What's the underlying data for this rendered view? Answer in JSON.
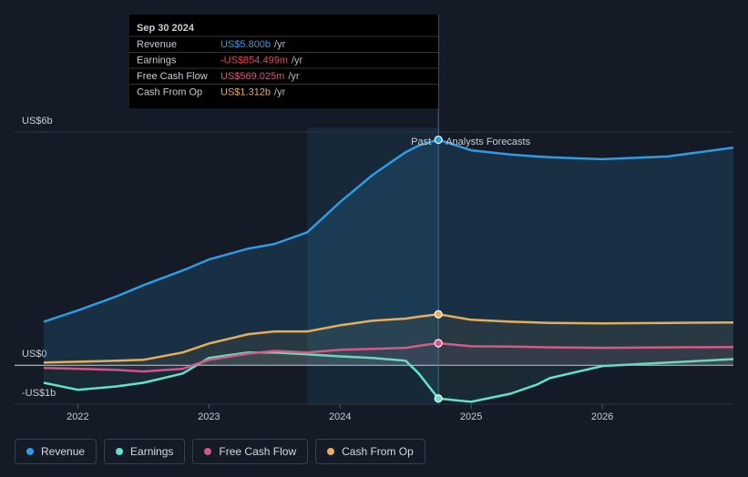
{
  "chart_data": {
    "type": "line",
    "x": [
      2021.74,
      2022,
      2022.3,
      2022.5,
      2022.8,
      2023,
      2023.3,
      2023.5,
      2023.75,
      2024,
      2024.25,
      2024.5,
      2024.6,
      2024.75,
      2025,
      2025.3,
      2025.5,
      2025.6,
      2026,
      2026.5,
      2027
    ],
    "series": [
      {
        "name": "Revenue",
        "color": "#2f9be3",
        "values": [
          1.12,
          1.41,
          1.78,
          2.06,
          2.44,
          2.72,
          3.0,
          3.12,
          3.42,
          4.2,
          4.9,
          5.48,
          5.65,
          5.8,
          5.53,
          5.42,
          5.37,
          5.35,
          5.3,
          5.37,
          5.6
        ]
      },
      {
        "name": "Earnings",
        "color": "#5fe3c9",
        "values": [
          -0.45,
          -0.63,
          -0.54,
          -0.45,
          -0.21,
          0.19,
          0.33,
          0.33,
          0.28,
          0.23,
          0.19,
          0.12,
          -0.21,
          -0.854,
          -0.94,
          -0.73,
          -0.5,
          -0.33,
          -0.02,
          0.07,
          0.16
        ]
      },
      {
        "name": "Free Cash Flow",
        "color": "#d0568a",
        "values": [
          -0.07,
          -0.09,
          -0.12,
          -0.16,
          -0.09,
          0.14,
          0.3,
          0.37,
          0.33,
          0.4,
          0.42,
          0.45,
          0.5,
          0.569,
          0.49,
          0.48,
          0.47,
          0.46,
          0.45,
          0.46,
          0.47
        ]
      },
      {
        "name": "Cash From Op",
        "color": "#e6ae5c",
        "values": [
          0.07,
          0.09,
          0.12,
          0.14,
          0.33,
          0.56,
          0.8,
          0.87,
          0.87,
          1.03,
          1.15,
          1.2,
          1.25,
          1.312,
          1.17,
          1.12,
          1.1,
          1.09,
          1.08,
          1.09,
          1.1
        ]
      }
    ],
    "xlim": [
      2021.74,
      2027
    ],
    "xticks": [
      2022,
      2023,
      2024,
      2025,
      2026
    ],
    "ylim": [
      -1,
      6
    ],
    "yticks": [
      {
        "value": 6,
        "label": "US$6b"
      },
      {
        "value": 0,
        "label": "US$0"
      },
      {
        "value": -1,
        "label": "-US$1b"
      }
    ],
    "past_label": "Past",
    "forecast_label": "Analysts Forecasts",
    "tooltip": {
      "date": "Sep 30 2024",
      "rows": [
        {
          "label": "Revenue",
          "value": "US$5.800b",
          "unit": "/yr"
        },
        {
          "label": "Earnings",
          "value": "-US$854.499m",
          "unit": "/yr"
        },
        {
          "label": "Free Cash Flow",
          "value": "US$569.025m",
          "unit": "/yr"
        },
        {
          "label": "Cash From Op",
          "value": "US$1.312b",
          "unit": "/yr"
        }
      ]
    }
  }
}
